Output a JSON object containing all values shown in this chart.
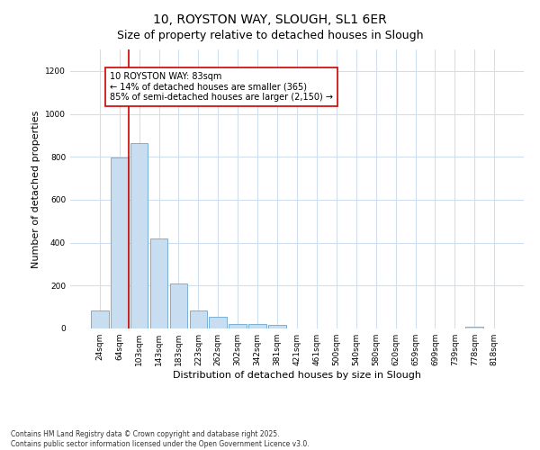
{
  "title1": "10, ROYSTON WAY, SLOUGH, SL1 6ER",
  "title2": "Size of property relative to detached houses in Slough",
  "xlabel": "Distribution of detached houses by size in Slough",
  "ylabel": "Number of detached properties",
  "categories": [
    "24sqm",
    "64sqm",
    "103sqm",
    "143sqm",
    "183sqm",
    "223sqm",
    "262sqm",
    "302sqm",
    "342sqm",
    "381sqm",
    "421sqm",
    "461sqm",
    "500sqm",
    "540sqm",
    "580sqm",
    "620sqm",
    "659sqm",
    "699sqm",
    "739sqm",
    "778sqm",
    "818sqm"
  ],
  "values": [
    85,
    795,
    865,
    420,
    210,
    85,
    55,
    20,
    20,
    15,
    0,
    0,
    0,
    0,
    0,
    0,
    0,
    0,
    0,
    8,
    0
  ],
  "bar_color": "#c8ddf0",
  "bar_edge_color": "#7ab0d4",
  "bar_edge_width": 0.7,
  "vline_color": "#cc0000",
  "annotation_text": "10 ROYSTON WAY: 83sqm\n← 14% of detached houses are smaller (365)\n85% of semi-detached houses are larger (2,150) →",
  "annotation_box_color": "#cc0000",
  "ylim": [
    0,
    1300
  ],
  "yticks": [
    0,
    200,
    400,
    600,
    800,
    1000,
    1200
  ],
  "bg_color": "#ffffff",
  "plot_bg_color": "#ffffff",
  "grid_color": "#d0dff0",
  "footnote1": "Contains HM Land Registry data © Crown copyright and database right 2025.",
  "footnote2": "Contains public sector information licensed under the Open Government Licence v3.0.",
  "title_fontsize": 10,
  "subtitle_fontsize": 9,
  "annotation_fontsize": 7,
  "tick_fontsize": 6.5,
  "label_fontsize": 8
}
